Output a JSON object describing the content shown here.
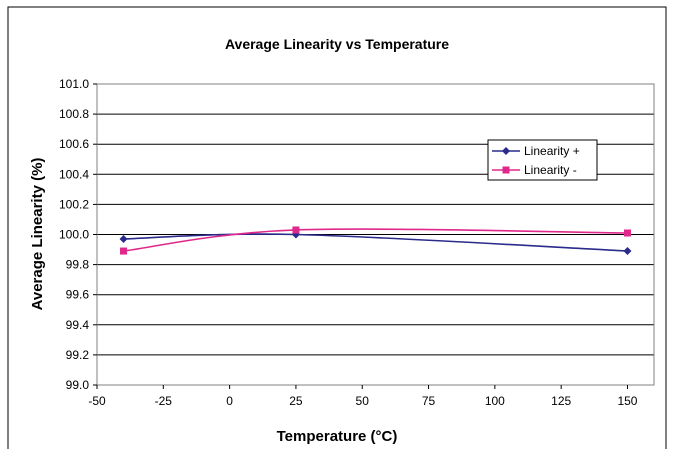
{
  "chart_data": {
    "type": "line",
    "title": "Average Linearity vs Temperature",
    "xlabel": "Temperature (°C)",
    "ylabel": "Average Linearity (%)",
    "xlim": [
      -50,
      160
    ],
    "ylim": [
      99.0,
      101.0
    ],
    "x_ticks": [
      "-50",
      "-25",
      "0",
      "25",
      "50",
      "75",
      "100",
      "125",
      "150"
    ],
    "y_ticks": [
      "99.0",
      "99.2",
      "99.4",
      "99.6",
      "99.8",
      "100.0",
      "100.2",
      "100.4",
      "100.6",
      "100.8",
      "101.0"
    ],
    "grid": true,
    "legend_position": "right",
    "series": [
      {
        "name": "Linearity +",
        "color": "#2b2b8c",
        "marker": "diamond",
        "x": [
          -40,
          25,
          150
        ],
        "y": [
          99.97,
          100.0,
          99.89
        ]
      },
      {
        "name": "Linearity -",
        "color": "#e0288c",
        "marker": "square",
        "x": [
          -40,
          25,
          150
        ],
        "y": [
          99.89,
          100.03,
          100.01
        ]
      }
    ]
  }
}
